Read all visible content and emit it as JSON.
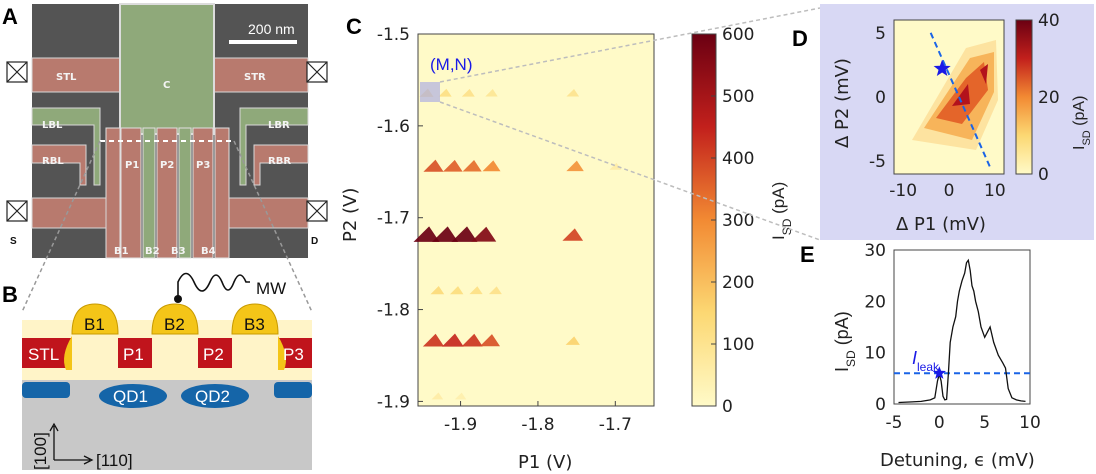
{
  "panels": {
    "a": "A",
    "b": "B",
    "c": "C",
    "d": "D",
    "e": "E"
  },
  "sem": {
    "scale_bar": "200 nm",
    "labels": [
      "STL",
      "STR",
      "C",
      "LBL",
      "LBR",
      "RBL",
      "RBR",
      "P1",
      "P2",
      "P3",
      "B1",
      "B2",
      "B3",
      "B4",
      "S",
      "D"
    ]
  },
  "schematic": {
    "mw": "MW",
    "barriers": [
      "B1",
      "B2",
      "B3"
    ],
    "plungers": [
      "STL",
      "P1",
      "P2",
      "P3"
    ],
    "dots": [
      "QD1",
      "QD2"
    ],
    "axis_vertical": "[100]",
    "axis_horizontal": "[110]"
  },
  "colors": {
    "sem_bg": "#555555",
    "gate_red": "#b87a6e",
    "gate_green": "#8fa97a",
    "plunger_red": "#c0141c",
    "barrier_yellow": "#f4c518",
    "dot_blue": "#1565a8",
    "substrate": "#c8c8c8",
    "oxide": "#fff4c8",
    "map_bg": "#fffac8",
    "inset_bg": "#d8d8f4",
    "marker_blue": "#1a1ae6"
  },
  "chart_c": {
    "annotation": "(M,N)",
    "xlabel": "P1 (V)",
    "ylabel": "P2 (V)",
    "xticks": [
      "-1.9",
      "-1.8",
      "-1.7"
    ],
    "yticks": [
      "-1.5",
      "-1.6",
      "-1.7",
      "-1.8",
      "-1.9"
    ],
    "colorbar_label": "I",
    "colorbar_sub": "SD",
    "colorbar_unit": " (pA)",
    "colorbar_ticks": [
      "600",
      "500",
      "400",
      "300",
      "200",
      "100",
      "0"
    ]
  },
  "chart_d": {
    "xlabel": "Δ P1 (mV)",
    "ylabel": "Δ P2 (mV)",
    "xticks": [
      "-10",
      "0",
      "10"
    ],
    "yticks": [
      "5",
      "0",
      "-5"
    ],
    "colorbar_label": "I",
    "colorbar_sub": "SD",
    "colorbar_unit": " (pA)",
    "colorbar_ticks": [
      "40",
      "20",
      "0"
    ]
  },
  "chart_e": {
    "xlabel": "Detuning, ϵ (mV)",
    "ylabel": "I",
    "ylabel_sub": "SD",
    "ylabel_unit": " (pA)",
    "xticks": [
      "-5",
      "0",
      "5",
      "10"
    ],
    "yticks": [
      "30",
      "20",
      "10",
      "0"
    ],
    "leak_label": "I",
    "leak_sub": "leak"
  },
  "chart_data": [
    {
      "type": "heatmap",
      "xlabel": "P1 (V)",
      "ylabel": "P2 (V)",
      "xlim": [
        -1.955,
        -1.65
      ],
      "ylim": [
        -1.905,
        -1.5
      ],
      "colorbar": {
        "label": "ISD (pA)",
        "range": [
          0,
          600
        ]
      },
      "rows_P2": [
        -1.565,
        -1.645,
        -1.72,
        -1.78,
        -1.835,
        -1.895
      ],
      "features": [
        {
          "P1": -1.944,
          "P2": -1.565,
          "I": 150
        },
        {
          "P1": -1.92,
          "P2": -1.565,
          "I": 120
        },
        {
          "P1": -1.89,
          "P2": -1.565,
          "I": 110
        },
        {
          "P1": -1.86,
          "P2": -1.565,
          "I": 90
        },
        {
          "P1": -1.755,
          "P2": -1.565,
          "I": 100
        },
        {
          "P1": -1.935,
          "P2": -1.645,
          "I": 380
        },
        {
          "P1": -1.91,
          "P2": -1.645,
          "I": 360
        },
        {
          "P1": -1.885,
          "P2": -1.645,
          "I": 340
        },
        {
          "P1": -1.86,
          "P2": -1.645,
          "I": 300
        },
        {
          "P1": -1.752,
          "P2": -1.645,
          "I": 280
        },
        {
          "P1": -1.7,
          "P2": -1.645,
          "I": 60
        },
        {
          "P1": -1.944,
          "P2": -1.72,
          "I": 600
        },
        {
          "P1": -1.92,
          "P2": -1.72,
          "I": 600
        },
        {
          "P1": -1.895,
          "P2": -1.72,
          "I": 600
        },
        {
          "P1": -1.87,
          "P2": -1.72,
          "I": 560
        },
        {
          "P1": -1.755,
          "P2": -1.72,
          "I": 400
        },
        {
          "P1": -1.93,
          "P2": -1.78,
          "I": 140
        },
        {
          "P1": -1.905,
          "P2": -1.78,
          "I": 130
        },
        {
          "P1": -1.88,
          "P2": -1.78,
          "I": 120
        },
        {
          "P1": -1.855,
          "P2": -1.78,
          "I": 110
        },
        {
          "P1": -1.935,
          "P2": -1.835,
          "I": 420
        },
        {
          "P1": -1.91,
          "P2": -1.835,
          "I": 440
        },
        {
          "P1": -1.885,
          "P2": -1.835,
          "I": 420
        },
        {
          "P1": -1.862,
          "P2": -1.835,
          "I": 380
        },
        {
          "P1": -1.755,
          "P2": -1.835,
          "I": 160
        },
        {
          "P1": -1.93,
          "P2": -1.895,
          "I": 60
        },
        {
          "P1": -1.9,
          "P2": -1.895,
          "I": 50
        }
      ]
    },
    {
      "type": "heatmap",
      "xlabel": "Δ P1 (mV)",
      "ylabel": "Δ P2 (mV)",
      "xlim": [
        -12,
        12
      ],
      "ylim": [
        -6,
        6
      ],
      "colorbar": {
        "label": "ISD (pA)",
        "range": [
          0,
          40
        ]
      },
      "marker": {
        "dP1": -1.5,
        "dP2": 2.2
      },
      "detuning_line": {
        "from": [
          -4,
          5
        ],
        "to": [
          9,
          -5.5
        ]
      }
    },
    {
      "type": "line",
      "xlabel": "Detuning, ϵ (mV)",
      "ylabel": "ISD (pA)",
      "xlim": [
        -5,
        10
      ],
      "ylim": [
        0,
        30
      ],
      "series": [
        {
          "x": [
            -4.5,
            -3,
            -2,
            -1,
            -0.5,
            -0.2,
            0,
            0.2,
            0.4,
            0.6,
            0.8,
            1.0,
            1.2,
            1.5,
            1.8,
            2.0,
            2.2,
            2.5,
            2.8,
            3.0,
            3.2,
            3.4,
            3.6,
            3.8,
            4.0,
            4.3,
            4.6,
            5.0,
            5.3,
            5.6,
            6.0,
            6.5,
            7.0,
            7.3,
            7.6,
            8.0,
            8.5,
            9.0,
            9.5
          ],
          "y": [
            0.3,
            0.4,
            0.5,
            0.8,
            1.2,
            4.5,
            5.8,
            4.5,
            1.5,
            0.8,
            0.9,
            6,
            12,
            15,
            17,
            20,
            22,
            24,
            25.5,
            27.5,
            28,
            26,
            23,
            22,
            20,
            18,
            15,
            13,
            14,
            15,
            12,
            9.5,
            8,
            7,
            3,
            1.2,
            0.8,
            0.6,
            0.5
          ]
        }
      ],
      "leak_level": 6,
      "marker": {
        "x": 0,
        "y": 6
      }
    }
  ]
}
